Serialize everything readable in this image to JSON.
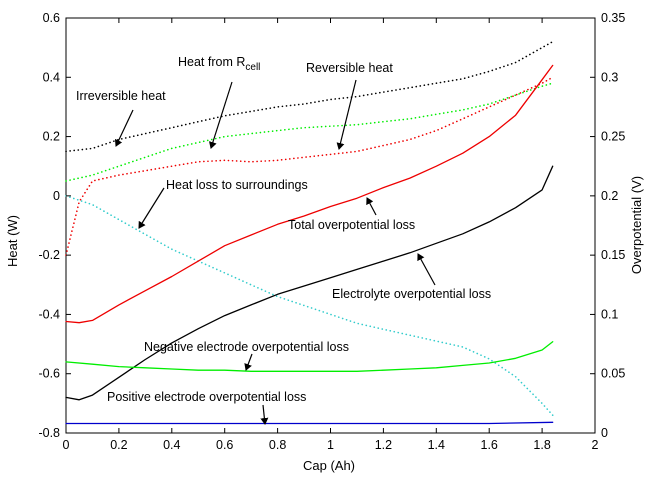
{
  "chart_data": {
    "type": "line",
    "title": "",
    "xlabel": "Cap (Ah)",
    "ylabel": "Heat (W)",
    "y2label": "Overpotential (V)",
    "xlim": [
      0,
      2
    ],
    "ylim": [
      -0.8,
      0.6
    ],
    "y2lim": [
      0,
      0.35
    ],
    "xticks": [
      "0",
      "0.2",
      "0.4",
      "0.6",
      "0.8",
      "1",
      "1.2",
      "1.4",
      "1.6",
      "1.8",
      "2"
    ],
    "yticks": [
      "-0.8",
      "-0.6",
      "-0.4",
      "-0.2",
      "0",
      "0.2",
      "0.4",
      "0.6"
    ],
    "y2ticks": [
      "0",
      "0.05",
      "0.1",
      "0.15",
      "0.2",
      "0.25",
      "0.3",
      "0.35"
    ],
    "grid": false,
    "series": [
      {
        "name": "Irreversible heat",
        "axis": "left",
        "color": "#000000",
        "style": "dotted",
        "x": [
          0,
          0.1,
          0.2,
          0.3,
          0.4,
          0.5,
          0.6,
          0.7,
          0.8,
          0.9,
          1.0,
          1.1,
          1.2,
          1.3,
          1.4,
          1.5,
          1.6,
          1.7,
          1.8,
          1.84
        ],
        "y": [
          0.15,
          0.16,
          0.19,
          0.21,
          0.23,
          0.25,
          0.27,
          0.285,
          0.3,
          0.31,
          0.325,
          0.335,
          0.35,
          0.365,
          0.38,
          0.395,
          0.42,
          0.45,
          0.5,
          0.52
        ]
      },
      {
        "name": "Heat from R_cell",
        "axis": "left",
        "color": "#00ee00",
        "style": "dotted",
        "x": [
          0,
          0.1,
          0.2,
          0.3,
          0.4,
          0.5,
          0.6,
          0.7,
          0.8,
          0.9,
          1.0,
          1.1,
          1.2,
          1.3,
          1.4,
          1.5,
          1.6,
          1.7,
          1.8,
          1.84
        ],
        "y": [
          0.05,
          0.07,
          0.1,
          0.13,
          0.16,
          0.18,
          0.2,
          0.21,
          0.22,
          0.23,
          0.235,
          0.24,
          0.25,
          0.26,
          0.275,
          0.29,
          0.31,
          0.34,
          0.37,
          0.38
        ]
      },
      {
        "name": "Reversible heat",
        "axis": "left",
        "color": "#ee0000",
        "style": "dotted",
        "x": [
          0,
          0.05,
          0.1,
          0.2,
          0.3,
          0.4,
          0.5,
          0.6,
          0.7,
          0.8,
          0.9,
          1.0,
          1.1,
          1.2,
          1.3,
          1.4,
          1.5,
          1.6,
          1.7,
          1.8,
          1.84
        ],
        "y": [
          -0.2,
          -0.02,
          0.05,
          0.07,
          0.085,
          0.1,
          0.115,
          0.12,
          0.115,
          0.12,
          0.13,
          0.14,
          0.15,
          0.17,
          0.19,
          0.22,
          0.26,
          0.3,
          0.34,
          0.38,
          0.4
        ]
      },
      {
        "name": "Heat loss to surroundings",
        "axis": "left",
        "color": "#33cccc",
        "style": "dotted",
        "x": [
          0,
          0.1,
          0.2,
          0.3,
          0.4,
          0.5,
          0.6,
          0.7,
          0.8,
          0.9,
          1.0,
          1.1,
          1.2,
          1.3,
          1.4,
          1.5,
          1.6,
          1.7,
          1.8,
          1.84
        ],
        "y": [
          0.0,
          -0.03,
          -0.08,
          -0.13,
          -0.18,
          -0.22,
          -0.26,
          -0.3,
          -0.34,
          -0.37,
          -0.4,
          -0.43,
          -0.45,
          -0.47,
          -0.49,
          -0.51,
          -0.55,
          -0.61,
          -0.7,
          -0.74
        ]
      },
      {
        "name": "Total overpotential loss",
        "axis": "right",
        "color": "#ee0000",
        "style": "solid",
        "x": [
          0,
          0.05,
          0.1,
          0.2,
          0.3,
          0.4,
          0.5,
          0.6,
          0.7,
          0.8,
          0.9,
          1.0,
          1.1,
          1.2,
          1.3,
          1.4,
          1.5,
          1.6,
          1.7,
          1.8,
          1.84
        ],
        "y": [
          0.094,
          0.093,
          0.095,
          0.108,
          0.12,
          0.132,
          0.145,
          0.158,
          0.167,
          0.176,
          0.183,
          0.191,
          0.198,
          0.207,
          0.215,
          0.225,
          0.236,
          0.25,
          0.268,
          0.298,
          0.31
        ]
      },
      {
        "name": "Electrolyte overpotential loss",
        "axis": "right",
        "color": "#000000",
        "style": "solid",
        "x": [
          0,
          0.05,
          0.1,
          0.2,
          0.3,
          0.4,
          0.5,
          0.6,
          0.7,
          0.8,
          0.9,
          1.0,
          1.1,
          1.2,
          1.3,
          1.4,
          1.5,
          1.6,
          1.7,
          1.8,
          1.84
        ],
        "y": [
          0.03,
          0.028,
          0.032,
          0.047,
          0.062,
          0.076,
          0.088,
          0.099,
          0.108,
          0.117,
          0.124,
          0.131,
          0.138,
          0.145,
          0.152,
          0.16,
          0.168,
          0.178,
          0.19,
          0.205,
          0.225
        ]
      },
      {
        "name": "Negative electrode overpotential loss",
        "axis": "right",
        "color": "#00ee00",
        "style": "solid",
        "x": [
          0,
          0.1,
          0.2,
          0.3,
          0.4,
          0.5,
          0.6,
          0.7,
          0.8,
          0.9,
          1.0,
          1.1,
          1.2,
          1.3,
          1.4,
          1.5,
          1.6,
          1.7,
          1.8,
          1.84
        ],
        "y": [
          0.06,
          0.058,
          0.056,
          0.055,
          0.054,
          0.053,
          0.053,
          0.052,
          0.052,
          0.052,
          0.052,
          0.052,
          0.053,
          0.054,
          0.055,
          0.057,
          0.059,
          0.063,
          0.07,
          0.077
        ]
      },
      {
        "name": "Positive electrode overpotential loss",
        "axis": "right",
        "color": "#0000cc",
        "style": "solid",
        "x": [
          0,
          0.4,
          0.8,
          1.2,
          1.6,
          1.84
        ],
        "y": [
          0.008,
          0.008,
          0.008,
          0.008,
          0.008,
          0.009
        ]
      }
    ],
    "annotations": [
      {
        "label_main": "Irreversible heat",
        "label_sub": ""
      },
      {
        "label_main": "Heat from R",
        "label_sub": "cell"
      },
      {
        "label_main": "Reversible heat",
        "label_sub": ""
      },
      {
        "label_main": "Heat loss to surroundings",
        "label_sub": ""
      },
      {
        "label_main": "Total overpotential loss",
        "label_sub": ""
      },
      {
        "label_main": "Electrolyte overpotential loss",
        "label_sub": ""
      },
      {
        "label_main": "Negative electrode overpotential loss",
        "label_sub": ""
      },
      {
        "label_main": "Positive electrode overpotential loss",
        "label_sub": ""
      }
    ]
  }
}
